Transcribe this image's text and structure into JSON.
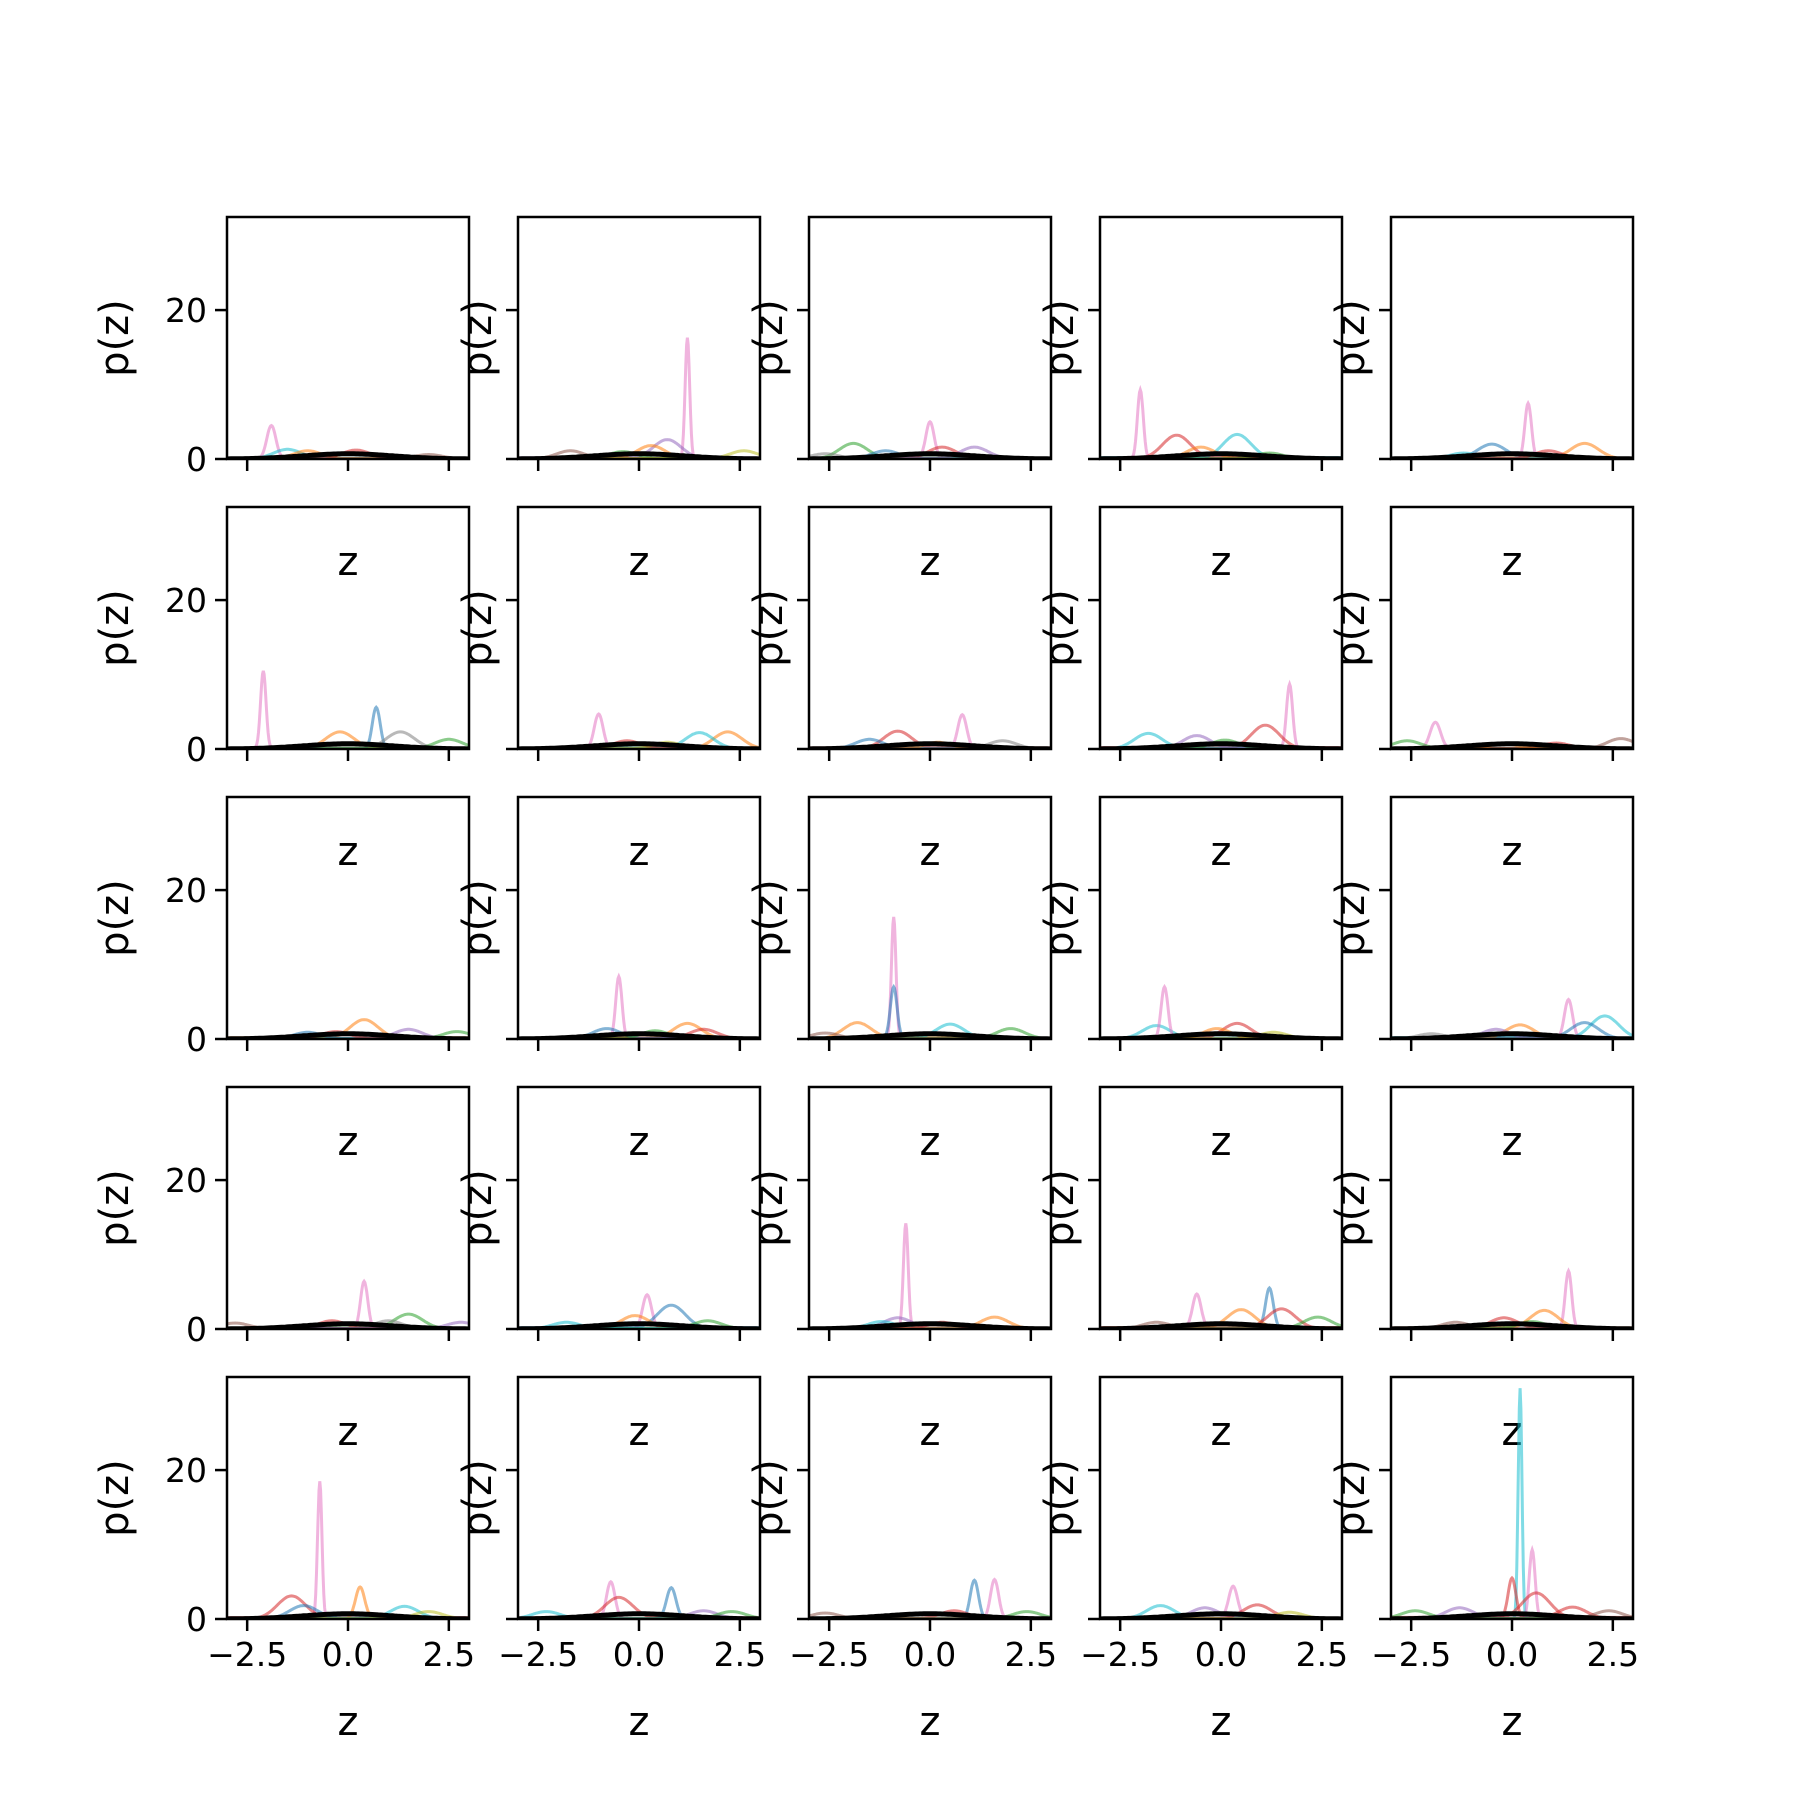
{
  "chart_data": {
    "type": "line",
    "layout": {
      "rows": 5,
      "cols": 5
    },
    "xlabel": "z",
    "ylabel": "p(z)",
    "xlim": [
      -3.0,
      3.0
    ],
    "ylim": [
      0,
      32.5
    ],
    "x_ticks": [
      -2.5,
      0.0,
      2.5
    ],
    "x_tick_labels": [
      "−2.5",
      "0.0",
      "2.5"
    ],
    "y_ticks": [
      0,
      20
    ],
    "y_tick_labels": [
      "0",
      "20"
    ],
    "series_colors": [
      "#1f77b4",
      "#ff7f0e",
      "#2ca02c",
      "#d62728",
      "#9467bd",
      "#8c564b",
      "#e377c2",
      "#7f7f7f",
      "#bcbd22",
      "#17becf",
      "#000000"
    ],
    "panels": [
      {
        "peaks": [
          [
            -1.9,
            4.5,
            6
          ],
          [
            -1.5,
            1.3,
            9
          ],
          [
            -1.0,
            1.1,
            1
          ],
          [
            0.2,
            1.2,
            3
          ],
          [
            2.0,
            0.6,
            5
          ]
        ]
      },
      {
        "peaks": [
          [
            1.2,
            16.3,
            6
          ],
          [
            0.7,
            2.6,
            4
          ],
          [
            0.3,
            1.8,
            1
          ],
          [
            -1.7,
            1.1,
            5
          ],
          [
            -0.4,
            1.0,
            2
          ],
          [
            2.6,
            1.1,
            8
          ]
        ]
      },
      {
        "peaks": [
          [
            0.0,
            5.0,
            6
          ],
          [
            -1.9,
            2.1,
            2
          ],
          [
            -1.1,
            1.1,
            0
          ],
          [
            0.3,
            1.6,
            3
          ],
          [
            1.1,
            1.6,
            4
          ],
          [
            -2.6,
            0.7,
            7
          ]
        ]
      },
      {
        "peaks": [
          [
            -2.0,
            9.3,
            6
          ],
          [
            -1.1,
            3.2,
            3
          ],
          [
            0.4,
            3.3,
            9
          ],
          [
            -0.5,
            1.6,
            1
          ],
          [
            1.2,
            0.8,
            2
          ]
        ]
      },
      {
        "peaks": [
          [
            0.4,
            7.5,
            6
          ],
          [
            -0.5,
            2.0,
            0
          ],
          [
            1.8,
            2.1,
            1
          ],
          [
            -1.2,
            0.8,
            9
          ],
          [
            0.9,
            1.1,
            3
          ]
        ]
      },
      {
        "peaks": [
          [
            -2.1,
            10.5,
            6
          ],
          [
            -0.2,
            2.3,
            1
          ],
          [
            0.7,
            5.6,
            0
          ],
          [
            1.3,
            2.3,
            7
          ],
          [
            2.5,
            1.3,
            2
          ]
        ]
      },
      {
        "peaks": [
          [
            -1.0,
            4.7,
            6
          ],
          [
            2.2,
            2.3,
            1
          ],
          [
            1.5,
            2.2,
            9
          ],
          [
            -0.3,
            1.1,
            3
          ],
          [
            0.7,
            0.9,
            8
          ]
        ]
      },
      {
        "peaks": [
          [
            0.8,
            4.6,
            6
          ],
          [
            -0.8,
            2.4,
            3
          ],
          [
            -1.5,
            1.3,
            0
          ],
          [
            1.8,
            1.1,
            7
          ],
          [
            0.2,
            0.9,
            1
          ]
        ]
      },
      {
        "peaks": [
          [
            1.7,
            8.7,
            6
          ],
          [
            1.1,
            3.2,
            3
          ],
          [
            -1.8,
            2.1,
            9
          ],
          [
            -0.6,
            1.8,
            4
          ],
          [
            0.1,
            1.2,
            2
          ]
        ]
      },
      {
        "peaks": [
          [
            -1.9,
            3.6,
            6
          ],
          [
            -2.6,
            1.1,
            2
          ],
          [
            1.1,
            0.8,
            3
          ],
          [
            2.7,
            1.4,
            5
          ],
          [
            -0.2,
            0.7,
            1
          ]
        ]
      },
      {
        "peaks": [
          [
            0.4,
            2.6,
            1
          ],
          [
            1.5,
            1.3,
            4
          ],
          [
            2.7,
            1.0,
            2
          ],
          [
            -1.0,
            0.9,
            0
          ],
          [
            -0.3,
            1.0,
            3
          ]
        ]
      },
      {
        "peaks": [
          [
            -0.5,
            8.4,
            6
          ],
          [
            1.2,
            2.1,
            1
          ],
          [
            1.6,
            1.3,
            3
          ],
          [
            -0.8,
            1.4,
            0
          ],
          [
            0.4,
            1.1,
            2
          ]
        ]
      },
      {
        "peaks": [
          [
            -0.9,
            16.4,
            6
          ],
          [
            -0.9,
            7.0,
            0
          ],
          [
            -1.8,
            2.2,
            1
          ],
          [
            0.5,
            2.0,
            9
          ],
          [
            2.0,
            1.4,
            2
          ],
          [
            -2.6,
            0.8,
            5
          ]
        ]
      },
      {
        "peaks": [
          [
            -1.6,
            1.8,
            9
          ],
          [
            -1.4,
            7.0,
            6
          ],
          [
            0.4,
            2.1,
            3
          ],
          [
            -0.1,
            1.4,
            1
          ],
          [
            1.3,
            0.9,
            8
          ]
        ]
      },
      {
        "peaks": [
          [
            1.4,
            5.3,
            6
          ],
          [
            2.3,
            3.1,
            9
          ],
          [
            1.8,
            2.2,
            0
          ],
          [
            0.2,
            1.9,
            1
          ],
          [
            -0.4,
            1.3,
            4
          ],
          [
            -2.0,
            0.7,
            7
          ]
        ]
      },
      {
        "peaks": [
          [
            0.4,
            6.4,
            6
          ],
          [
            1.5,
            2.0,
            2
          ],
          [
            -0.4,
            1.1,
            3
          ],
          [
            1.0,
            1.1,
            7
          ],
          [
            -2.8,
            0.8,
            5
          ],
          [
            2.8,
            0.9,
            4
          ]
        ]
      },
      {
        "peaks": [
          [
            0.2,
            4.6,
            6
          ],
          [
            0.8,
            3.2,
            0
          ],
          [
            -0.1,
            1.8,
            1
          ],
          [
            1.7,
            1.1,
            2
          ],
          [
            -1.8,
            0.9,
            9
          ]
        ]
      },
      {
        "peaks": [
          [
            -0.6,
            14.2,
            6
          ],
          [
            -0.8,
            1.5,
            4
          ],
          [
            -1.2,
            1.0,
            9
          ],
          [
            1.6,
            1.6,
            1
          ],
          [
            0.3,
            0.9,
            3
          ]
        ]
      },
      {
        "peaks": [
          [
            -0.6,
            4.7,
            6
          ],
          [
            1.2,
            5.5,
            0
          ],
          [
            0.5,
            2.6,
            1
          ],
          [
            1.5,
            2.7,
            3
          ],
          [
            2.4,
            1.6,
            2
          ],
          [
            -1.6,
            0.9,
            5
          ]
        ]
      },
      {
        "peaks": [
          [
            1.4,
            7.8,
            6
          ],
          [
            0.8,
            2.5,
            1
          ],
          [
            -0.2,
            1.5,
            3
          ],
          [
            -1.4,
            0.9,
            5
          ],
          [
            0.5,
            1.0,
            2
          ]
        ]
      },
      {
        "peaks": [
          [
            -0.7,
            18.5,
            6
          ],
          [
            -1.4,
            3.1,
            3
          ],
          [
            -1.1,
            1.8,
            0
          ],
          [
            0.3,
            4.3,
            1
          ],
          [
            1.4,
            1.7,
            9
          ],
          [
            2.0,
            1.0,
            8
          ]
        ]
      },
      {
        "peaks": [
          [
            -0.7,
            5.0,
            6
          ],
          [
            -0.5,
            2.9,
            3
          ],
          [
            0.8,
            4.2,
            0
          ],
          [
            -2.3,
            1.0,
            9
          ],
          [
            1.6,
            1.1,
            4
          ],
          [
            2.3,
            1.0,
            2
          ]
        ]
      },
      {
        "peaks": [
          [
            1.1,
            5.2,
            0
          ],
          [
            1.6,
            5.3,
            6
          ],
          [
            0.6,
            1.1,
            3
          ],
          [
            2.4,
            1.0,
            2
          ],
          [
            -2.6,
            0.8,
            5
          ]
        ]
      },
      {
        "peaks": [
          [
            0.3,
            4.4,
            6
          ],
          [
            -1.5,
            1.8,
            9
          ],
          [
            -0.4,
            1.5,
            4
          ],
          [
            0.9,
            1.9,
            3
          ],
          [
            1.7,
            0.9,
            8
          ]
        ]
      },
      {
        "peaks": [
          [
            0.2,
            31.0,
            9
          ],
          [
            0.5,
            9.3,
            6
          ],
          [
            0.0,
            5.5,
            3
          ],
          [
            0.6,
            3.5,
            3
          ],
          [
            1.5,
            1.6,
            3
          ],
          [
            2.4,
            1.1,
            5
          ],
          [
            -1.3,
            1.5,
            4
          ],
          [
            -2.4,
            1.1,
            2
          ]
        ]
      }
    ]
  }
}
